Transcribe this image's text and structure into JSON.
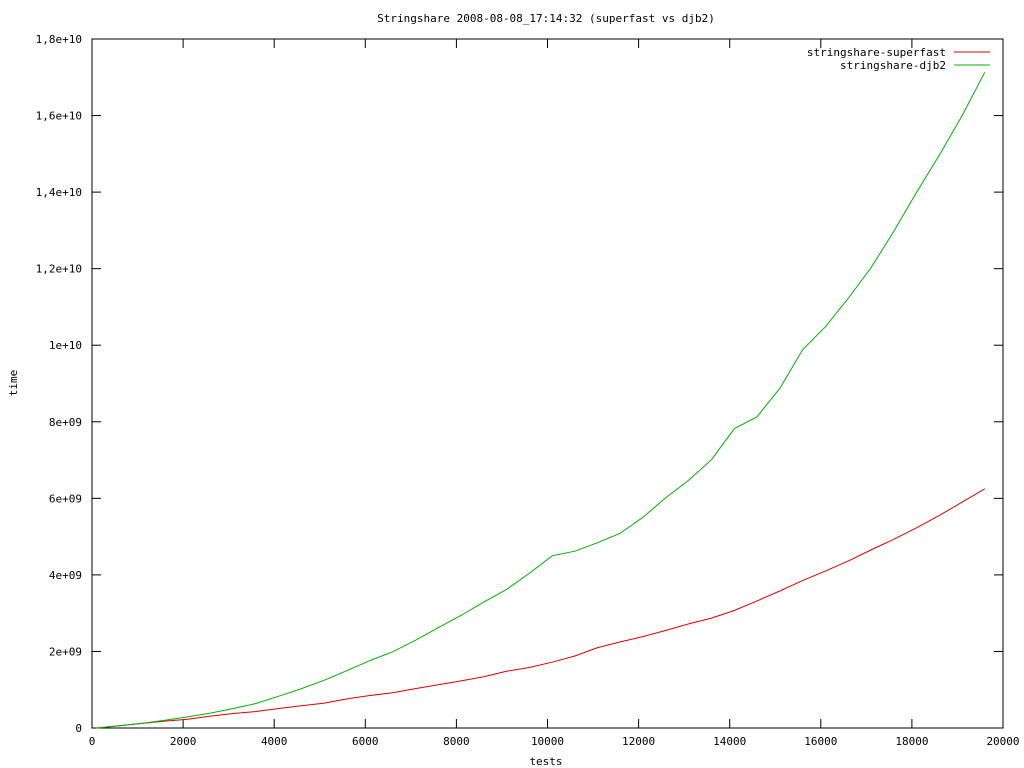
{
  "chart_data": {
    "type": "line",
    "title": "Stringshare 2008-08-08_17:14:32 (superfast vs djb2)",
    "xlabel": "tests",
    "ylabel": "time",
    "xlim": [
      0,
      20000
    ],
    "ylim": [
      0,
      18000000000
    ],
    "grid": false,
    "legend_position": "top-right",
    "x_ticks": [
      0,
      2000,
      4000,
      6000,
      8000,
      10000,
      12000,
      14000,
      16000,
      18000,
      20000
    ],
    "x_tick_labels": [
      "0",
      "2000",
      "4000",
      "6000",
      "8000",
      "10000",
      "12000",
      "14000",
      "16000",
      "18000",
      "20000"
    ],
    "y_ticks": [
      0,
      2000000000,
      4000000000,
      6000000000,
      8000000000,
      10000000000,
      12000000000,
      14000000000,
      16000000000,
      18000000000
    ],
    "y_tick_labels": [
      "0",
      "2e+09",
      "4e+09",
      "6e+09",
      "8e+09",
      "1e+10",
      "1,2e+10",
      "1,4e+10",
      "1,6e+10",
      "1,8e+10"
    ],
    "series": [
      {
        "name": "stringshare-superfast",
        "color": "#e00000",
        "x": [
          100,
          600,
          1100,
          1600,
          2100,
          2600,
          3100,
          3600,
          4100,
          4600,
          5100,
          5600,
          6100,
          6600,
          7100,
          7600,
          8100,
          8600,
          9100,
          9600,
          10100,
          10600,
          11100,
          11600,
          12100,
          12600,
          13100,
          13600,
          14100,
          14600,
          15100,
          15600,
          16100,
          16600,
          17100,
          17600,
          18100,
          18600,
          19100,
          19600
        ],
        "y": [
          0,
          60000000,
          120000000,
          180000000,
          230000000,
          310000000,
          380000000,
          430000000,
          510000000,
          580000000,
          650000000,
          760000000,
          850000000,
          920000000,
          1030000000,
          1130000000,
          1230000000,
          1340000000,
          1480000000,
          1580000000,
          1720000000,
          1880000000,
          2100000000,
          2250000000,
          2390000000,
          2550000000,
          2720000000,
          2870000000,
          3070000000,
          3320000000,
          3580000000,
          3850000000,
          4100000000,
          4360000000,
          4650000000,
          4930000000,
          5230000000,
          5550000000,
          5900000000,
          6250000000
        ]
      },
      {
        "name": "stringshare-djb2",
        "color": "#00b000",
        "x": [
          100,
          600,
          1100,
          1600,
          2100,
          2600,
          3100,
          3600,
          4100,
          4600,
          5100,
          5600,
          6100,
          6600,
          7100,
          7600,
          8100,
          8600,
          9100,
          9600,
          10100,
          10600,
          11100,
          11600,
          12100,
          12600,
          13100,
          13600,
          14100,
          14600,
          15100,
          15600,
          16100,
          16600,
          17100,
          17600,
          18100,
          18600,
          19100,
          19600
        ],
        "y": [
          0,
          60000000,
          120000000,
          200000000,
          290000000,
          390000000,
          510000000,
          640000000,
          830000000,
          1030000000,
          1250000000,
          1500000000,
          1760000000,
          1990000000,
          2290000000,
          2620000000,
          2940000000,
          3290000000,
          3620000000,
          4040000000,
          4500000000,
          4620000000,
          4840000000,
          5090000000,
          5510000000,
          6020000000,
          6470000000,
          7010000000,
          7820000000,
          8130000000,
          8870000000,
          9880000000,
          10480000000,
          11220000000,
          12020000000,
          12970000000,
          13990000000,
          14960000000,
          15990000000,
          17130000000
        ]
      }
    ]
  }
}
